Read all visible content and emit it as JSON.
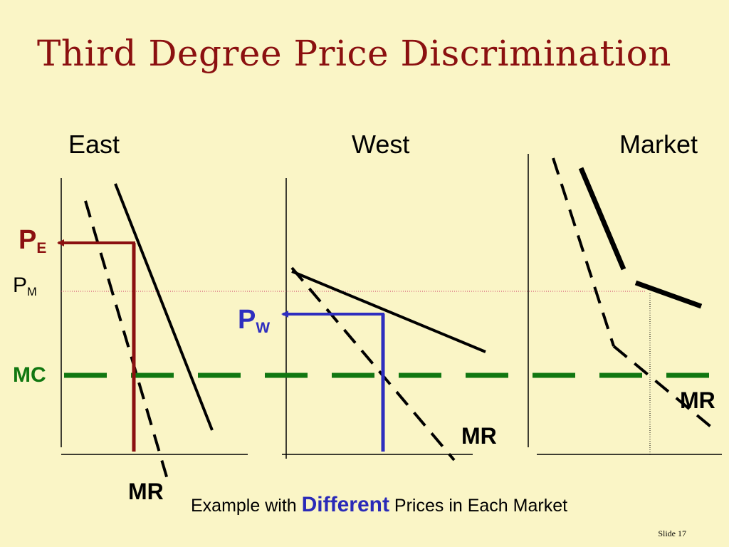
{
  "title": "Third Degree Price Discrimination",
  "panels": {
    "east": "East",
    "west": "West",
    "market": "Market"
  },
  "labels": {
    "pe_main": "P",
    "pe_sub": "E",
    "pm_main": "P",
    "pm_sub": "M",
    "pw_main": "P",
    "pw_sub": "W",
    "mc": "MC",
    "mr_east": "MR",
    "mr_west": "MR",
    "mr_market": "MR"
  },
  "caption": {
    "prefix": "Example with ",
    "emphasis": "Different",
    "suffix": " Prices in Each Market"
  },
  "slide_number": "Slide 17",
  "colors": {
    "background": "#FAF5C6",
    "title": "#8B1010",
    "east_price": "#8B1010",
    "west_price": "#2E2EBF",
    "mc": "#117711",
    "pm_line": "#CC3366"
  }
}
